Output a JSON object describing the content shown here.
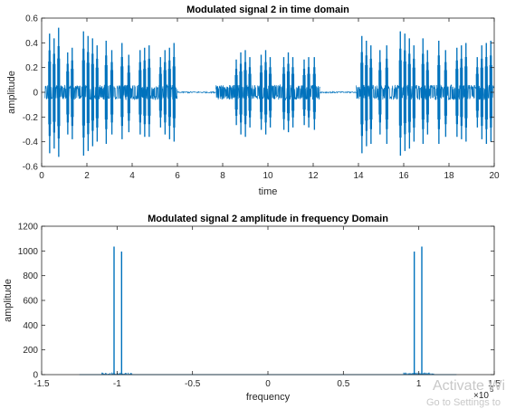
{
  "chart_data": [
    {
      "type": "line",
      "title": "Modulated signal 2 in time domain",
      "xlabel": "time",
      "ylabel": "amplitude",
      "xlim": [
        0,
        20
      ],
      "ylim": [
        -0.6,
        0.6
      ],
      "xticks": [
        "0",
        "2",
        "4",
        "6",
        "8",
        "10",
        "12",
        "14",
        "16",
        "18",
        "20"
      ],
      "yticks": [
        "-0.6",
        "-0.4",
        "-0.2",
        "0",
        "0.2",
        "0.4",
        "0.6"
      ],
      "color": "#0072BD",
      "box": true,
      "grid": false,
      "series": [
        {
          "bursts": [
            {
              "start": 0.15,
              "end": 6.0,
              "spikes": [
                [
                  0.35,
                  0.5,
                  -0.52
                ],
                [
                  0.55,
                  0.46,
                  -0.48
                ],
                [
                  0.75,
                  0.55,
                  -0.55
                ],
                [
                  1.15,
                  0.34,
                  -0.36
                ],
                [
                  1.35,
                  0.38,
                  -0.4
                ],
                [
                  1.85,
                  0.52,
                  -0.54
                ],
                [
                  2.05,
                  0.48,
                  -0.5
                ],
                [
                  2.25,
                  0.46,
                  -0.46
                ],
                [
                  2.45,
                  0.4,
                  -0.42
                ],
                [
                  2.85,
                  0.44,
                  -0.44
                ],
                [
                  3.1,
                  0.36,
                  -0.36
                ],
                [
                  3.55,
                  0.42,
                  -0.4
                ],
                [
                  3.85,
                  0.32,
                  -0.34
                ],
                [
                  4.35,
                  0.36,
                  -0.36
                ],
                [
                  4.55,
                  0.38,
                  -0.38
                ],
                [
                  4.75,
                  0.4,
                  -0.38
                ],
                [
                  5.25,
                  0.3,
                  -0.3
                ],
                [
                  5.45,
                  0.36,
                  -0.36
                ],
                [
                  5.65,
                  0.38,
                  -0.4
                ],
                [
                  5.85,
                  0.42,
                  -0.42
                ]
              ]
            },
            {
              "start": 7.7,
              "end": 12.3,
              "spikes": [
                [
                  8.6,
                  0.28,
                  -0.28
                ],
                [
                  8.8,
                  0.34,
                  -0.36
                ],
                [
                  9.0,
                  0.36,
                  -0.38
                ],
                [
                  9.2,
                  0.3,
                  -0.3
                ],
                [
                  9.7,
                  0.32,
                  -0.32
                ],
                [
                  9.9,
                  0.36,
                  -0.36
                ],
                [
                  10.1,
                  0.3,
                  -0.3
                ],
                [
                  10.7,
                  0.3,
                  -0.32
                ],
                [
                  10.9,
                  0.34,
                  -0.34
                ],
                [
                  11.1,
                  0.3,
                  -0.3
                ],
                [
                  11.6,
                  0.28,
                  -0.28
                ],
                [
                  11.8,
                  0.3,
                  -0.3
                ],
                [
                  12.05,
                  0.3,
                  -0.32
                ]
              ]
            },
            {
              "start": 13.9,
              "end": 20.0,
              "spikes": [
                [
                  14.15,
                  0.48,
                  -0.52
                ],
                [
                  14.35,
                  0.44,
                  -0.46
                ],
                [
                  14.55,
                  0.4,
                  -0.44
                ],
                [
                  14.95,
                  0.36,
                  -0.36
                ],
                [
                  15.25,
                  0.4,
                  -0.44
                ],
                [
                  15.85,
                  0.52,
                  -0.54
                ],
                [
                  16.05,
                  0.5,
                  -0.5
                ],
                [
                  16.25,
                  0.46,
                  -0.48
                ],
                [
                  16.45,
                  0.4,
                  -0.42
                ],
                [
                  16.85,
                  0.46,
                  -0.44
                ],
                [
                  17.05,
                  0.36,
                  -0.36
                ],
                [
                  17.55,
                  0.44,
                  -0.44
                ],
                [
                  17.85,
                  0.36,
                  -0.38
                ],
                [
                  18.35,
                  0.38,
                  -0.38
                ],
                [
                  18.55,
                  0.4,
                  -0.4
                ],
                [
                  18.75,
                  0.42,
                  -0.42
                ],
                [
                  19.25,
                  0.3,
                  -0.3
                ],
                [
                  19.45,
                  0.4,
                  -0.4
                ],
                [
                  19.65,
                  0.42,
                  -0.44
                ],
                [
                  19.85,
                  0.44,
                  -0.42
                ]
              ]
            }
          ],
          "quiet": [
            [
              6.0,
              7.7
            ],
            [
              12.3,
              13.9
            ]
          ]
        }
      ]
    },
    {
      "type": "line",
      "title": "Modulated signal 2 amplitude in frequency Domain",
      "xlabel": "frequency",
      "ylabel": "amplitude",
      "xlim": [
        -1.5,
        1.5
      ],
      "ylim": [
        0,
        1200
      ],
      "x_exponent": "5",
      "xticks": [
        "-1.5",
        "-1",
        "-0.5",
        "0",
        "0.5",
        "1",
        "1.5"
      ],
      "yticks": [
        "0",
        "200",
        "400",
        "600",
        "800",
        "1000",
        "1200"
      ],
      "color": "#0072BD",
      "box": true,
      "grid": false,
      "series": [
        {
          "peaks": [
            {
              "x": -1.02,
              "y": 1035
            },
            {
              "x": -0.97,
              "y": 995
            },
            {
              "x": 0.97,
              "y": 995
            },
            {
              "x": 1.02,
              "y": 1035
            }
          ]
        }
      ]
    }
  ],
  "watermark": {
    "line1": "Activate Wi",
    "line2": "Go to Settings to"
  }
}
